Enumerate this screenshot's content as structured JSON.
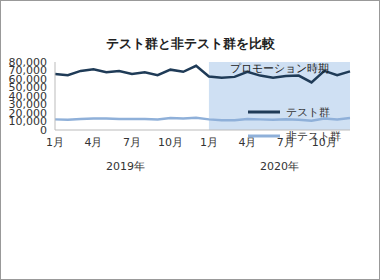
{
  "chart_data": {
    "type": "line",
    "title": "テスト群と非テスト群を比較",
    "categories": [
      "1月",
      null,
      null,
      "4月",
      null,
      null,
      "7月",
      null,
      null,
      "10月",
      null,
      null,
      "1月",
      null,
      null,
      "4月",
      null,
      null,
      "7月",
      null,
      null,
      "10月",
      null,
      null
    ],
    "category_groups": [
      {
        "label": "2019年",
        "start": 0,
        "end": 11
      },
      {
        "label": "2020年",
        "start": 12,
        "end": 23
      }
    ],
    "shaded_region": {
      "label": "プロモーション時期",
      "start": 12,
      "end": 23,
      "color": "#cfe0f3"
    },
    "series": [
      {
        "name": "テスト群",
        "color": "#1f3b57",
        "values": [
          66000,
          64500,
          69500,
          71500,
          68000,
          69500,
          66000,
          68000,
          64500,
          71000,
          68500,
          75500,
          63000,
          61500,
          62500,
          68500,
          64000,
          61500,
          63500,
          64000,
          56000,
          69500,
          64500,
          69000
        ]
      },
      {
        "name": "非テスト群",
        "color": "#8fb0d9",
        "values": [
          12500,
          12000,
          13000,
          13500,
          13500,
          13000,
          13000,
          13000,
          12500,
          14000,
          13500,
          14500,
          12500,
          11500,
          11500,
          13000,
          12500,
          12000,
          12500,
          12000,
          11000,
          13500,
          12500,
          14000
        ]
      }
    ],
    "ylim": [
      0,
      80000
    ],
    "yticks": [
      0,
      {
        "value": 10000,
        "label": "10,000"
      },
      {
        "value": 20000,
        "label": "20,000"
      },
      {
        "value": 30000,
        "label": "30,000"
      },
      {
        "value": 40000,
        "label": "40,000"
      },
      {
        "value": 50000,
        "label": "50,000"
      },
      {
        "value": 60000,
        "label": "60,000"
      },
      {
        "value": 70000,
        "label": "70,000"
      },
      {
        "value": 80000,
        "label": "80,000"
      }
    ],
    "grid": false,
    "legend": "right"
  }
}
